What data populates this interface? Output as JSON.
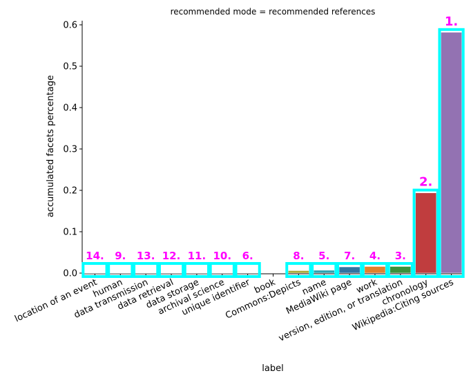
{
  "chart_data": {
    "type": "bar",
    "title": "recommended mode = recommended references",
    "xlabel": "label",
    "ylabel": "accumulated facets percentage",
    "ylim": [
      0,
      0.61
    ],
    "yticks": [
      0.0,
      0.1,
      0.2,
      0.3,
      0.4,
      0.5,
      0.6
    ],
    "ytick_labels": [
      "0.0",
      "0.1",
      "0.2",
      "0.3",
      "0.4",
      "0.5",
      "0.6"
    ],
    "grid": false,
    "categories": [
      "location of an event",
      "human",
      "data transmission",
      "data retrieval",
      "data storage",
      "archival science",
      "unique identifier",
      "book",
      "Commons:Depicts",
      "name",
      "MediaWiki page",
      "work",
      "version, edition, or translation",
      "chronology",
      "Wikipedia:Citing sources"
    ],
    "values": [
      0.0003,
      0.0003,
      0.0003,
      0.0003,
      0.0003,
      0.0003,
      0.0004,
      0.0,
      0.006,
      0.007,
      0.015,
      0.016,
      0.016,
      0.194,
      0.582
    ],
    "bar_colors": [
      "#3274a1",
      "#e1812c",
      "#3a923a",
      "#c03d3e",
      "#9372b2",
      "#845b53",
      "#d684bd",
      "#7f7f7f",
      "#a9aa35",
      "#2ea4b2",
      "#3274a1",
      "#e1812c",
      "#3a923a",
      "#c03d3e",
      "#9372b2"
    ],
    "rank_labels": [
      "14.",
      "9.",
      "13.",
      "12.",
      "11.",
      "10.",
      "6.",
      "",
      "8.",
      "5.",
      "7.",
      "4.",
      "3.",
      "2.",
      "1."
    ],
    "highlight_color": "#00ffff",
    "rank_label_color": "#ff00ff"
  }
}
